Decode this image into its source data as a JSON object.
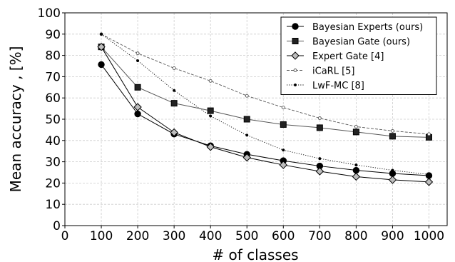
{
  "chart_data": {
    "type": "line",
    "xlabel": "# of classes",
    "ylabel": "Mean accuracy , [%]",
    "xlim": [
      0,
      1050
    ],
    "ylim": [
      0,
      100
    ],
    "x_ticks": [
      0,
      100,
      200,
      300,
      400,
      500,
      600,
      700,
      800,
      900,
      1000
    ],
    "y_ticks": [
      0,
      10,
      20,
      30,
      40,
      50,
      60,
      70,
      80,
      90,
      100
    ],
    "grid": true,
    "legend_position": "top-right",
    "x": [
      100,
      200,
      300,
      400,
      500,
      600,
      700,
      800,
      900,
      1000
    ],
    "series": [
      {
        "name": "Bayesian Experts (ours)",
        "values": [
          75.7,
          52.5,
          43.0,
          37.5,
          33.5,
          30.5,
          28.0,
          26.0,
          24.5,
          23.5
        ],
        "color": "#000000",
        "marker": "circle",
        "line": "solid"
      },
      {
        "name": "Bayesian Gate (ours)",
        "values": [
          84.0,
          65.0,
          57.5,
          54.0,
          50.0,
          47.5,
          46.0,
          44.0,
          42.0,
          41.5
        ],
        "color": "#555555",
        "marker": "square",
        "line": "solid"
      },
      {
        "name": "Expert Gate [4]",
        "values": [
          84.0,
          55.7,
          43.8,
          37.0,
          32.0,
          28.5,
          25.5,
          23.0,
          21.5,
          20.5
        ],
        "color": "#000000",
        "marker": "diamond",
        "line": "solid"
      },
      {
        "name": "iCaRL [5]",
        "values": [
          90.0,
          81.0,
          74.0,
          68.0,
          61.0,
          55.5,
          50.5,
          46.5,
          44.5,
          43.0
        ],
        "color": "#555555",
        "marker": "open-circle",
        "line": "dashed"
      },
      {
        "name": "LwF-MC [8]",
        "values": [
          90.0,
          77.5,
          63.5,
          51.5,
          42.5,
          35.5,
          31.5,
          28.5,
          26.0,
          24.0
        ],
        "color": "#000000",
        "marker": "dot",
        "line": "dotted"
      }
    ]
  }
}
